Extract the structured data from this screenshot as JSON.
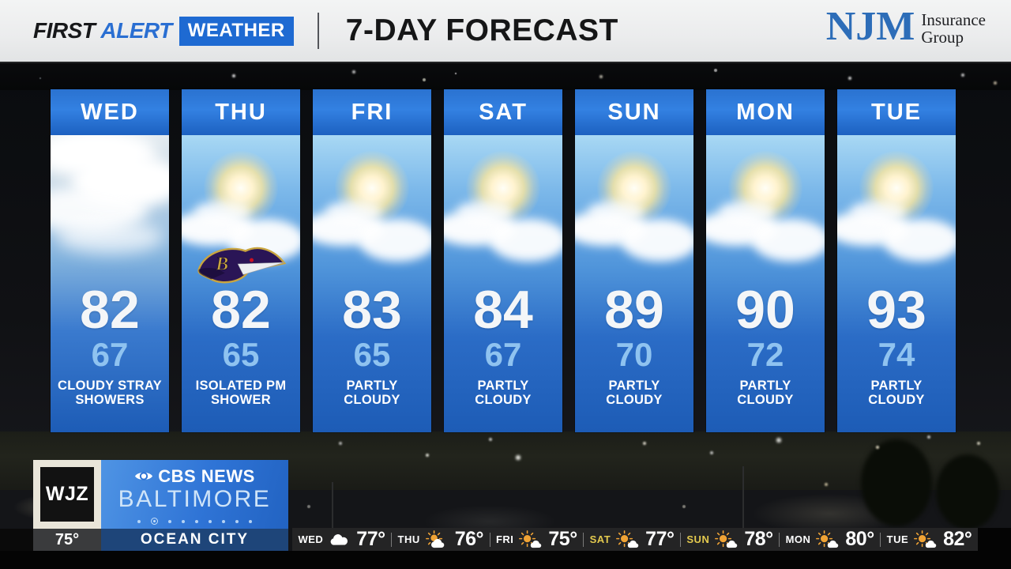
{
  "header": {
    "brand": {
      "first": "FIRST",
      "alert": "ALERT",
      "weather": "WEATHER"
    },
    "title": "7-DAY FORECAST",
    "sponsor": {
      "name": "NJM",
      "line1": "Insurance",
      "line2": "Group"
    }
  },
  "forecast_cards": [
    {
      "day": "WED",
      "high": "82",
      "low": "67",
      "condition": "CLOUDY STRAY SHOWERS",
      "sky": "cloudy",
      "badge": ""
    },
    {
      "day": "THU",
      "high": "82",
      "low": "65",
      "condition": "ISOLATED PM SHOWER",
      "sky": "sun-clouds",
      "badge": "ravens-logo"
    },
    {
      "day": "FRI",
      "high": "83",
      "low": "65",
      "condition": "PARTLY CLOUDY",
      "sky": "sun-clouds",
      "badge": ""
    },
    {
      "day": "SAT",
      "high": "84",
      "low": "67",
      "condition": "PARTLY CLOUDY",
      "sky": "sun-clouds",
      "badge": ""
    },
    {
      "day": "SUN",
      "high": "89",
      "low": "70",
      "condition": "PARTLY CLOUDY",
      "sky": "sun-clouds",
      "badge": ""
    },
    {
      "day": "MON",
      "high": "90",
      "low": "72",
      "condition": "PARTLY CLOUDY",
      "sky": "sun-clouds",
      "badge": ""
    },
    {
      "day": "TUE",
      "high": "93",
      "low": "74",
      "condition": "PARTLY CLOUDY",
      "sky": "sun-clouds",
      "badge": ""
    }
  ],
  "station": {
    "call_letters": "WJZ",
    "network": "CBS NEWS",
    "market": "BALTIMORE",
    "pager_dots": 9,
    "pager_active_index": 1
  },
  "current_conditions": {
    "temp": "75°",
    "location": "OCEAN CITY"
  },
  "ticker": [
    {
      "day": "WED",
      "temp": "77°",
      "icon": "cloud-icon",
      "highlight": false
    },
    {
      "day": "THU",
      "temp": "76°",
      "icon": "sun-behind-cloud-icon",
      "highlight": false
    },
    {
      "day": "FRI",
      "temp": "75°",
      "icon": "sun-cloud-icon",
      "highlight": false
    },
    {
      "day": "SAT",
      "temp": "77°",
      "icon": "sun-cloud-icon",
      "highlight": true
    },
    {
      "day": "SUN",
      "temp": "78°",
      "icon": "sun-cloud-icon",
      "highlight": true
    },
    {
      "day": "MON",
      "temp": "80°",
      "icon": "sun-cloud-icon",
      "highlight": false
    },
    {
      "day": "TUE",
      "temp": "82°",
      "icon": "sun-cloud-icon",
      "highlight": false
    }
  ],
  "colors": {
    "brand_blue": "#1e6ad2",
    "card_header_blue": "#2a72d4",
    "card_deep_blue": "#1c5ab4",
    "low_temp_blue": "#8fc3f0",
    "weekend_gold": "#e3c94e",
    "ocean_city_navy": "#1e4579",
    "cbs_banner_blue": "#2f74d6"
  }
}
